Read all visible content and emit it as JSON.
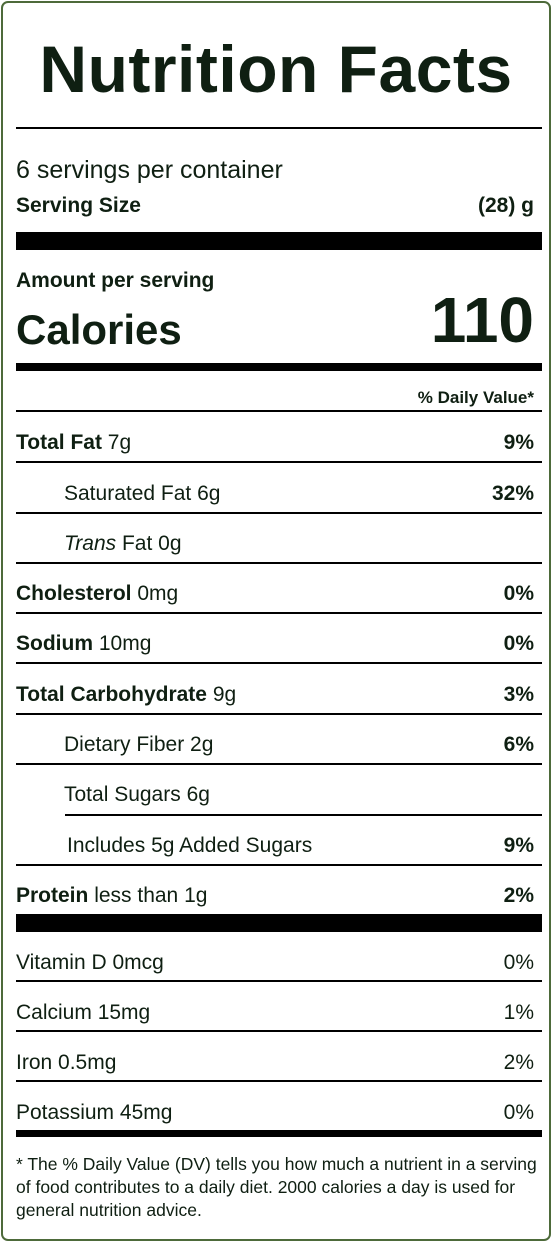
{
  "title": "Nutrition Facts",
  "servings_per_container": "6 servings per container",
  "serving_size": {
    "label": "Serving Size",
    "value": "(28) g"
  },
  "amount_per_serving": "Amount per serving",
  "calories": {
    "label": "Calories",
    "value": "110"
  },
  "daily_value_header": "% Daily Value*",
  "nutrients": {
    "total_fat": {
      "name": "Total Fat",
      "amount": "7g",
      "dv": "9%"
    },
    "saturated_fat": {
      "name": "Saturated Fat",
      "amount": "6g",
      "dv": "32%"
    },
    "trans_fat": {
      "name_italic": "Trans",
      "name_rest": "Fat",
      "amount": "0g",
      "dv": ""
    },
    "cholesterol": {
      "name": "Cholesterol",
      "amount": "0mg",
      "dv": "0%"
    },
    "sodium": {
      "name": "Sodium",
      "amount": "10mg",
      "dv": "0%"
    },
    "total_carbohydrate": {
      "name": "Total Carbohydrate",
      "amount": "9g",
      "dv": "3%"
    },
    "dietary_fiber": {
      "name": "Dietary Fiber",
      "amount": "2g",
      "dv": "6%"
    },
    "total_sugars": {
      "name": "Total Sugars",
      "amount": "6g",
      "dv": ""
    },
    "added_sugars": {
      "prefix": "Includes",
      "amount": "5g",
      "suffix": "Added Sugars",
      "dv": "9%"
    },
    "protein": {
      "name": "Protein",
      "amount": "less than 1g",
      "dv": "2%"
    }
  },
  "vitamins": {
    "vitamin_d": {
      "name": "Vitamin D",
      "amount": "0mcg",
      "dv": "0%"
    },
    "calcium": {
      "name": "Calcium",
      "amount": "15mg",
      "dv": "1%"
    },
    "iron": {
      "name": "Iron",
      "amount": "0.5mg",
      "dv": "2%"
    },
    "potassium": {
      "name": "Potassium",
      "amount": "45mg",
      "dv": "0%"
    }
  },
  "footnote": "* The % Daily Value (DV) tells you how much a nutrient in a serving of food contributes to a daily diet. 2000 calories a day is used for general nutrition advice.",
  "colors": {
    "border": "#4d6a3a",
    "text": "#0f1f12",
    "rules": "#000000"
  }
}
